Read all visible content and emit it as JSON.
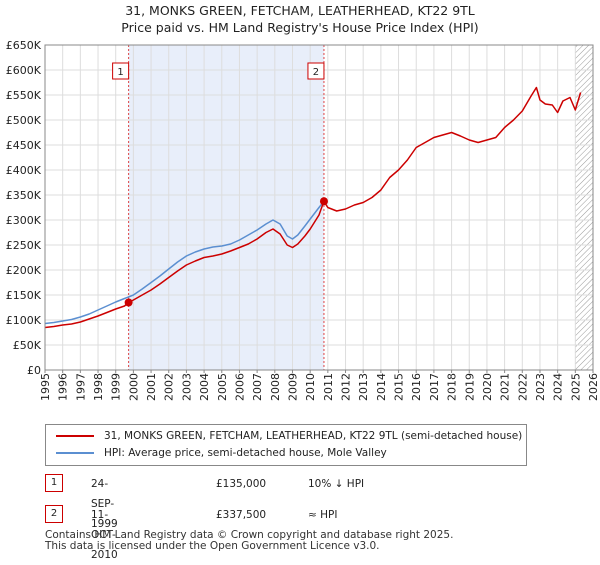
{
  "title_line1": "31, MONKS GREEN, FETCHAM, LEATHERHEAD, KT22 9TL",
  "title_line2": "Price paid vs. HM Land Registry's House Price Index (HPI)",
  "chart_data": {
    "type": "line",
    "title": "31, MONKS GREEN, FETCHAM, LEATHERHEAD, KT22 9TL — Price paid vs. HM Land Registry's House Price Index (HPI)",
    "xlabel": "",
    "ylabel": "",
    "xlim": [
      1995,
      2026
    ],
    "ylim": [
      0,
      650000
    ],
    "grid": true,
    "x_ticks": [
      "1995",
      "1996",
      "1997",
      "1998",
      "1999",
      "2000",
      "2001",
      "2002",
      "2003",
      "2004",
      "2005",
      "2006",
      "2007",
      "2008",
      "2009",
      "2010",
      "2011",
      "2012",
      "2013",
      "2014",
      "2015",
      "2016",
      "2017",
      "2018",
      "2019",
      "2020",
      "2021",
      "2022",
      "2023",
      "2024",
      "2025",
      "2026"
    ],
    "y_ticks": [
      {
        "value": 0,
        "label": "£0"
      },
      {
        "value": 50000,
        "label": "£50K"
      },
      {
        "value": 100000,
        "label": "£100K"
      },
      {
        "value": 150000,
        "label": "£150K"
      },
      {
        "value": 200000,
        "label": "£200K"
      },
      {
        "value": 250000,
        "label": "£250K"
      },
      {
        "value": 300000,
        "label": "£300K"
      },
      {
        "value": 350000,
        "label": "£350K"
      },
      {
        "value": 400000,
        "label": "£400K"
      },
      {
        "value": 450000,
        "label": "£450K"
      },
      {
        "value": 500000,
        "label": "£500K"
      },
      {
        "value": 550000,
        "label": "£550K"
      },
      {
        "value": 600000,
        "label": "£600K"
      },
      {
        "value": 650000,
        "label": "£650K"
      }
    ],
    "ownership_shading": [
      1999.73,
      2010.78
    ],
    "future_hatch_from": 2025.0,
    "series": [
      {
        "name": "31, MONKS GREEN, FETCHAM, LEATHERHEAD, KT22 9TL (semi-detached house)",
        "color": "#cc0000",
        "x": [
          1995.0,
          1995.5,
          1996.0,
          1996.5,
          1997.0,
          1997.5,
          1998.0,
          1998.5,
          1999.0,
          1999.5,
          1999.73,
          2000.0,
          2000.5,
          2001.0,
          2001.5,
          2002.0,
          2002.5,
          2003.0,
          2003.5,
          2004.0,
          2004.5,
          2005.0,
          2005.5,
          2006.0,
          2006.5,
          2007.0,
          2007.5,
          2007.9,
          2008.3,
          2008.7,
          2009.0,
          2009.3,
          2009.7,
          2010.0,
          2010.5,
          2010.78,
          2011.0,
          2011.5,
          2012.0,
          2012.5,
          2013.0,
          2013.5,
          2014.0,
          2014.5,
          2015.0,
          2015.5,
          2016.0,
          2016.5,
          2017.0,
          2017.5,
          2018.0,
          2018.5,
          2019.0,
          2019.5,
          2020.0,
          2020.5,
          2021.0,
          2021.5,
          2022.0,
          2022.5,
          2022.8,
          2023.0,
          2023.3,
          2023.7,
          2024.0,
          2024.3,
          2024.7,
          2025.0,
          2025.3
        ],
        "values": [
          85000,
          87000,
          90000,
          92000,
          96000,
          102000,
          108000,
          115000,
          122000,
          128000,
          135000,
          140000,
          150000,
          160000,
          172000,
          185000,
          198000,
          210000,
          218000,
          225000,
          228000,
          232000,
          238000,
          245000,
          252000,
          262000,
          275000,
          282000,
          272000,
          250000,
          245000,
          252000,
          268000,
          282000,
          310000,
          337500,
          325000,
          318000,
          322000,
          330000,
          335000,
          345000,
          360000,
          385000,
          400000,
          420000,
          445000,
          455000,
          465000,
          470000,
          475000,
          468000,
          460000,
          455000,
          460000,
          465000,
          485000,
          500000,
          518000,
          548000,
          565000,
          540000,
          532000,
          530000,
          515000,
          538000,
          545000,
          520000,
          555000
        ]
      },
      {
        "name": "HPI: Average price, semi-detached house, Mole Valley",
        "color": "#5b8fd1",
        "x": [
          1995.0,
          1995.5,
          1996.0,
          1996.5,
          1997.0,
          1997.5,
          1998.0,
          1998.5,
          1999.0,
          1999.5,
          2000.0,
          2000.5,
          2001.0,
          2001.5,
          2002.0,
          2002.5,
          2003.0,
          2003.5,
          2004.0,
          2004.5,
          2005.0,
          2005.5,
          2006.0,
          2006.5,
          2007.0,
          2007.5,
          2007.9,
          2008.3,
          2008.7,
          2009.0,
          2009.3,
          2009.7,
          2010.0,
          2010.5,
          2010.78
        ],
        "values": [
          93000,
          95000,
          98000,
          101000,
          106000,
          112000,
          120000,
          128000,
          136000,
          143000,
          150000,
          162000,
          175000,
          188000,
          202000,
          216000,
          228000,
          236000,
          242000,
          246000,
          248000,
          252000,
          260000,
          270000,
          280000,
          292000,
          300000,
          292000,
          268000,
          262000,
          270000,
          288000,
          302000,
          325000,
          337500
        ]
      }
    ],
    "annotations": [
      {
        "label": "1",
        "x": 1999.73,
        "value": 135000
      },
      {
        "label": "2",
        "x": 2010.78,
        "value": 337500
      }
    ]
  },
  "legend": {
    "property": "31, MONKS GREEN, FETCHAM, LEATHERHEAD, KT22 9TL (semi-detached house)",
    "hpi": "HPI: Average price, semi-detached house, Mole Valley"
  },
  "transactions": [
    {
      "num": "1",
      "date": "24-SEP-1999",
      "price": "£135,000",
      "hpi": "10% ↓ HPI"
    },
    {
      "num": "2",
      "date": "11-OCT-2010",
      "price": "£337,500",
      "hpi": "≈ HPI"
    }
  ],
  "footer": {
    "line1": "Contains HM Land Registry data © Crown copyright and database right 2025.",
    "line2": "This data is licensed under the Open Government Licence v3.0."
  }
}
